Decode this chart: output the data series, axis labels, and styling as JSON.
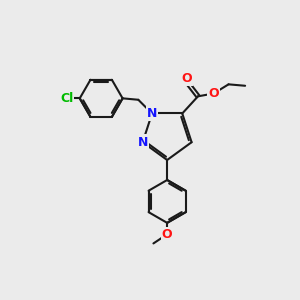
{
  "background_color": "#ebebeb",
  "bond_color": "#1a1a1a",
  "bond_width": 1.5,
  "atom_colors": {
    "N": "#1414ff",
    "O": "#ff1414",
    "Cl": "#00bb00",
    "C": "#1a1a1a"
  },
  "font_size_atom": 8.5
}
